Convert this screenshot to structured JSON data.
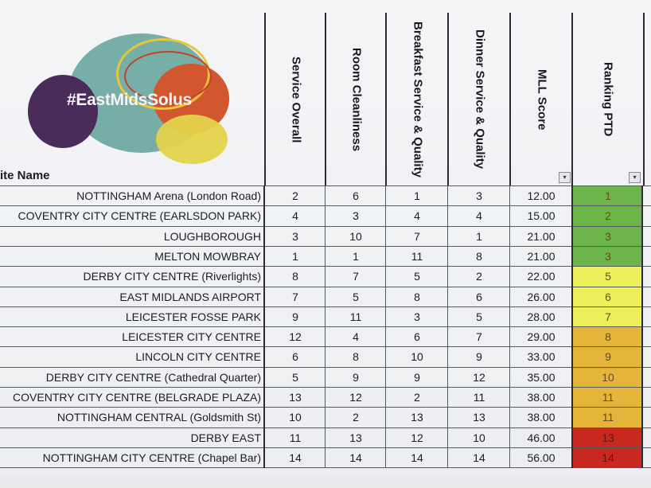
{
  "header": {
    "logo_text": "#EastMidsSolus",
    "site_name_label": "ite Name",
    "columns": [
      "Service Overall",
      "Room Cleanliness",
      "Breakfast Service & Quality",
      "Dinner Service & Quality",
      "MLL Score",
      "Ranking PTD"
    ],
    "filter_icon": "dropdown-arrow-icon"
  },
  "colors": {
    "green": "#6bb54a",
    "yellow": "#eef05a",
    "amber": "#e4b53a",
    "red": "#c8281e"
  },
  "rows": [
    {
      "site": "NOTTINGHAM Arena (London Road)",
      "service": "2",
      "room": "6",
      "breakfast": "1",
      "dinner": "3",
      "mll": "12.00",
      "rank": "1",
      "band": "green"
    },
    {
      "site": "COVENTRY CITY CENTRE (EARLSDON PARK)",
      "service": "4",
      "room": "3",
      "breakfast": "4",
      "dinner": "4",
      "mll": "15.00",
      "rank": "2",
      "band": "green"
    },
    {
      "site": "LOUGHBOROUGH",
      "service": "3",
      "room": "10",
      "breakfast": "7",
      "dinner": "1",
      "mll": "21.00",
      "rank": "3",
      "band": "green"
    },
    {
      "site": "MELTON MOWBRAY",
      "service": "1",
      "room": "1",
      "breakfast": "11",
      "dinner": "8",
      "mll": "21.00",
      "rank": "3",
      "band": "green"
    },
    {
      "site": "DERBY CITY CENTRE  (Riverlights)",
      "service": "8",
      "room": "7",
      "breakfast": "5",
      "dinner": "2",
      "mll": "22.00",
      "rank": "5",
      "band": "yellow"
    },
    {
      "site": "EAST MIDLANDS AIRPORT",
      "service": "7",
      "room": "5",
      "breakfast": "8",
      "dinner": "6",
      "mll": "26.00",
      "rank": "6",
      "band": "yellow"
    },
    {
      "site": "LEICESTER FOSSE PARK",
      "service": "9",
      "room": "11",
      "breakfast": "3",
      "dinner": "5",
      "mll": "28.00",
      "rank": "7",
      "band": "yellow"
    },
    {
      "site": "LEICESTER CITY CENTRE",
      "service": "12",
      "room": "4",
      "breakfast": "6",
      "dinner": "7",
      "mll": "29.00",
      "rank": "8",
      "band": "amber"
    },
    {
      "site": "LINCOLN CITY CENTRE",
      "service": "6",
      "room": "8",
      "breakfast": "10",
      "dinner": "9",
      "mll": "33.00",
      "rank": "9",
      "band": "amber"
    },
    {
      "site": "DERBY CITY CENTRE (Cathedral Quarter)",
      "service": "5",
      "room": "9",
      "breakfast": "9",
      "dinner": "12",
      "mll": "35.00",
      "rank": "10",
      "band": "amber"
    },
    {
      "site": "COVENTRY CITY CENTRE (BELGRADE PLAZA)",
      "service": "13",
      "room": "12",
      "breakfast": "2",
      "dinner": "11",
      "mll": "38.00",
      "rank": "11",
      "band": "amber"
    },
    {
      "site": "NOTTINGHAM CENTRAL (Goldsmith St)",
      "service": "10",
      "room": "2",
      "breakfast": "13",
      "dinner": "13",
      "mll": "38.00",
      "rank": "11",
      "band": "amber"
    },
    {
      "site": "DERBY EAST",
      "service": "11",
      "room": "13",
      "breakfast": "12",
      "dinner": "10",
      "mll": "46.00",
      "rank": "13",
      "band": "red"
    },
    {
      "site": "NOTTINGHAM CITY CENTRE (Chapel Bar)",
      "service": "14",
      "room": "14",
      "breakfast": "14",
      "dinner": "14",
      "mll": "56.00",
      "rank": "14",
      "band": "red"
    }
  ]
}
